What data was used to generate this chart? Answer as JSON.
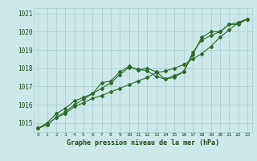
{
  "xlabel": "Graphe pression niveau de la mer (hPa)",
  "x": [
    0,
    1,
    2,
    3,
    4,
    5,
    6,
    7,
    8,
    9,
    10,
    11,
    12,
    13,
    14,
    15,
    16,
    17,
    18,
    19,
    20,
    21,
    22,
    23
  ],
  "line1": [
    1014.7,
    1014.9,
    1015.3,
    1015.5,
    1015.9,
    1016.1,
    1016.35,
    1016.5,
    1016.7,
    1016.9,
    1017.1,
    1017.3,
    1017.5,
    1017.75,
    1017.85,
    1018.0,
    1018.2,
    1018.5,
    1018.8,
    1019.2,
    1019.7,
    1020.1,
    1020.5,
    1020.7
  ],
  "line2": [
    1014.7,
    1014.9,
    1015.3,
    1015.6,
    1016.0,
    1016.3,
    1016.6,
    1017.2,
    1017.3,
    1017.8,
    1018.1,
    1017.9,
    1018.0,
    1017.8,
    1017.4,
    1017.5,
    1017.8,
    1018.75,
    1019.7,
    1020.0,
    1020.0,
    1020.4,
    1020.5,
    1020.7
  ],
  "line3": [
    1014.7,
    1015.0,
    1015.5,
    1015.8,
    1016.2,
    1016.4,
    1016.6,
    1016.9,
    1017.2,
    1017.65,
    1018.05,
    1017.95,
    1017.85,
    1017.55,
    1017.4,
    1017.6,
    1017.8,
    1018.85,
    1019.55,
    1019.8,
    1020.0,
    1020.4,
    1020.4,
    1020.7
  ],
  "line_color": "#2d6a2d",
  "bg_color": "#cce8e8",
  "grid_color": "#aacccc",
  "text_color": "#1a4a1a",
  "ylim": [
    1014.5,
    1021.3
  ],
  "yticks": [
    1015,
    1016,
    1017,
    1018,
    1019,
    1020,
    1021
  ],
  "marker": "D",
  "markersize": 2,
  "linewidth": 0.8
}
